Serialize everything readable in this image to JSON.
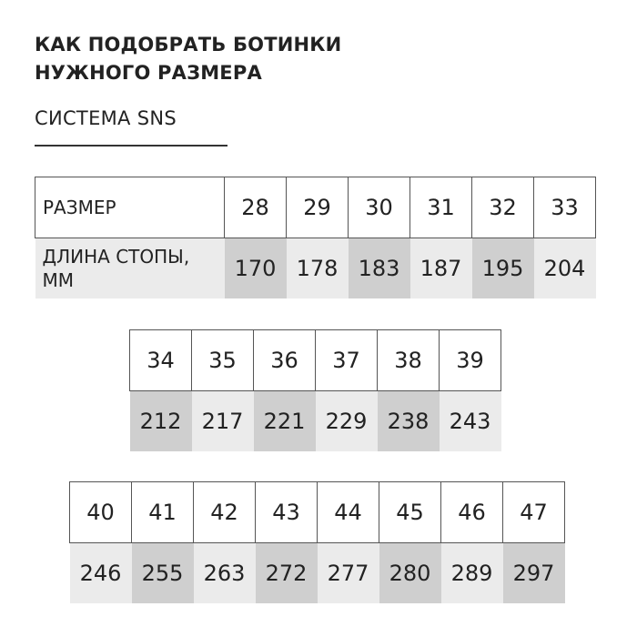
{
  "title": "КАК ПОДОБРАТЬ БОТИНКИ НУЖНОГО РАЗМЕРА",
  "title_line1": "КАК ПОДОБРАТЬ БОТИНКИ",
  "title_line2": "НУЖНОГО РАЗМЕРА",
  "subtitle": "СИСТЕМА SNS",
  "row_labels": {
    "size": "РАЗМЕР",
    "length": "ДЛИНА СТОПЫ, ММ"
  },
  "tables": [
    {
      "sizes": [
        "28",
        "29",
        "30",
        "31",
        "32",
        "33"
      ],
      "lengths": [
        "170",
        "178",
        "183",
        "187",
        "195",
        "204"
      ]
    },
    {
      "sizes": [
        "34",
        "35",
        "36",
        "37",
        "38",
        "39"
      ],
      "lengths": [
        "212",
        "217",
        "221",
        "229",
        "238",
        "243"
      ]
    },
    {
      "sizes": [
        "40",
        "41",
        "42",
        "43",
        "44",
        "45",
        "46",
        "47"
      ],
      "lengths": [
        "246",
        "255",
        "263",
        "272",
        "277",
        "280",
        "289",
        "297"
      ]
    }
  ],
  "colors": {
    "cell_light": "#ebebeb",
    "cell_dark": "#cfcfcf",
    "border": "#555555"
  }
}
